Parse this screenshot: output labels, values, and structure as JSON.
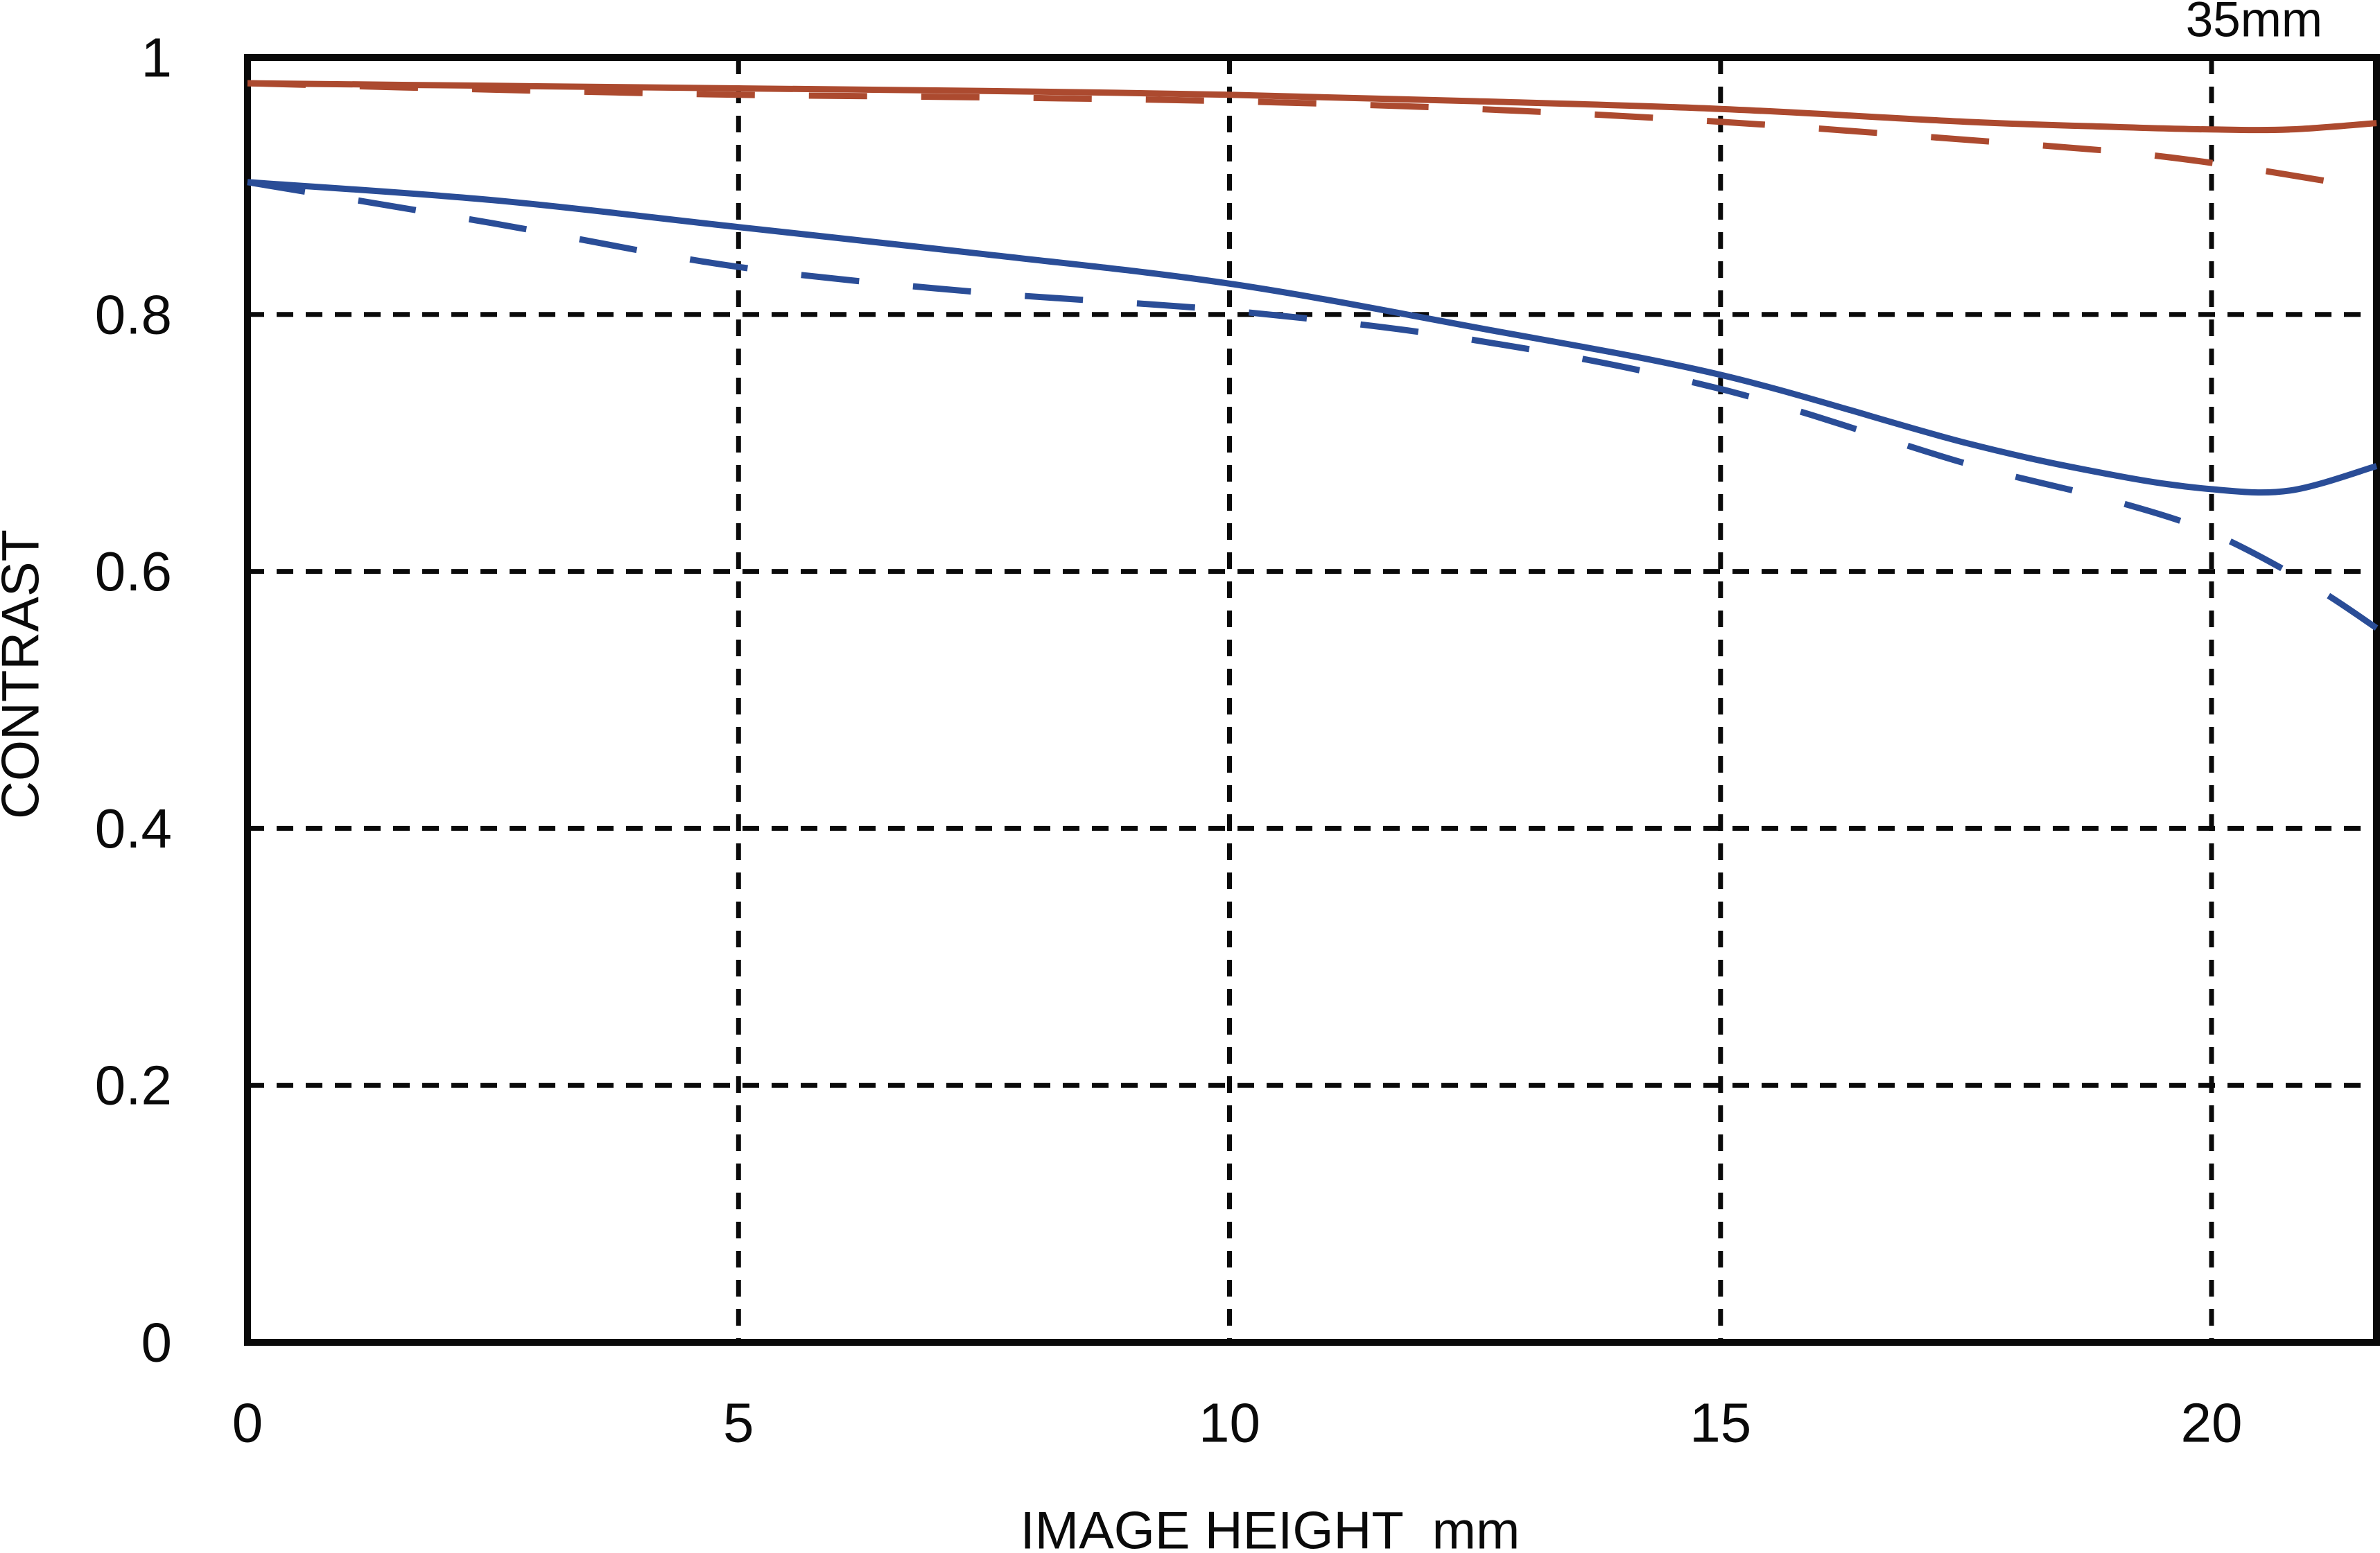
{
  "badge": "35mm",
  "chart_data": {
    "type": "line",
    "title": "35mm",
    "xlabel": "IMAGE HEIGHT  mm",
    "ylabel": "CONTRAST",
    "xlim": [
      0,
      21.68
    ],
    "ylim": [
      0,
      1
    ],
    "grid": true,
    "legend_position": "none",
    "x_ticks": [
      {
        "value": 0,
        "label": "0"
      },
      {
        "value": 5,
        "label": "5"
      },
      {
        "value": 10,
        "label": "10"
      },
      {
        "value": 15,
        "label": "15"
      },
      {
        "value": 20,
        "label": "20"
      }
    ],
    "y_ticks": [
      {
        "value": 1,
        "label": "1"
      },
      {
        "value": 0.8,
        "label": "0.8"
      },
      {
        "value": 0.6,
        "label": "0.6"
      },
      {
        "value": 0.4,
        "label": "0.4"
      },
      {
        "value": 0.2,
        "label": "0.2"
      },
      {
        "value": 0,
        "label": "0"
      }
    ],
    "gridlines": {
      "x_values": [
        5,
        10,
        15,
        20
      ],
      "y_values": [
        0.8,
        0.6,
        0.4,
        0.2
      ]
    },
    "colors": {
      "red": "#AC4A2F",
      "blue": "#2A4D97",
      "axis": "#0a0a0a"
    },
    "series": [
      {
        "id": "red-solid",
        "color_key": "red",
        "line_style": "solid",
        "points": [
          [
            0,
            0.98
          ],
          [
            2.5,
            0.978
          ],
          [
            5,
            0.976
          ],
          [
            7.5,
            0.974
          ],
          [
            10,
            0.971
          ],
          [
            12.5,
            0.966
          ],
          [
            15,
            0.96
          ],
          [
            17.5,
            0.95
          ],
          [
            19,
            0.946
          ],
          [
            20,
            0.944
          ],
          [
            20.8,
            0.944
          ],
          [
            21.68,
            0.949
          ]
        ]
      },
      {
        "id": "red-dashed",
        "color_key": "red",
        "line_style": "dashed",
        "points": [
          [
            0,
            0.98
          ],
          [
            2.5,
            0.975
          ],
          [
            5,
            0.971
          ],
          [
            7.5,
            0.969
          ],
          [
            10,
            0.966
          ],
          [
            12.5,
            0.96
          ],
          [
            15,
            0.95
          ],
          [
            17.5,
            0.936
          ],
          [
            19,
            0.927
          ],
          [
            20,
            0.918
          ],
          [
            21,
            0.906
          ],
          [
            21.68,
            0.897
          ]
        ]
      },
      {
        "id": "blue-solid",
        "color_key": "blue",
        "line_style": "solid",
        "points": [
          [
            0,
            0.903
          ],
          [
            2.5,
            0.889
          ],
          [
            5,
            0.868
          ],
          [
            7.5,
            0.847
          ],
          [
            10,
            0.824
          ],
          [
            12.5,
            0.79
          ],
          [
            15,
            0.753
          ],
          [
            17.5,
            0.7
          ],
          [
            19,
            0.675
          ],
          [
            20,
            0.664
          ],
          [
            20.8,
            0.663
          ],
          [
            21.68,
            0.682
          ]
        ]
      },
      {
        "id": "blue-dashed",
        "color_key": "blue",
        "line_style": "dashed",
        "points": [
          [
            0,
            0.903
          ],
          [
            2.5,
            0.871
          ],
          [
            5,
            0.837
          ],
          [
            7.5,
            0.817
          ],
          [
            10,
            0.803
          ],
          [
            12.5,
            0.78
          ],
          [
            15,
            0.742
          ],
          [
            17.5,
            0.684
          ],
          [
            19,
            0.655
          ],
          [
            20,
            0.63
          ],
          [
            21,
            0.59
          ],
          [
            21.68,
            0.556
          ]
        ]
      }
    ]
  }
}
